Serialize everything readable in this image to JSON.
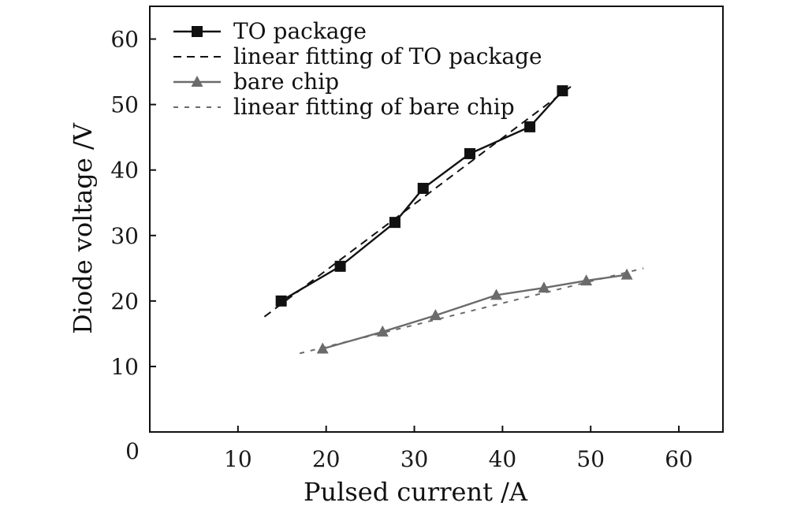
{
  "chart_data": {
    "type": "line",
    "title": "",
    "xlabel": "Pulsed current /A",
    "ylabel": "Diode voltage /V",
    "xlim": [
      0,
      65
    ],
    "ylim": [
      0,
      65
    ],
    "x_ticks": [
      10,
      20,
      30,
      40,
      50,
      60
    ],
    "y_ticks": [
      10,
      20,
      30,
      40,
      50,
      60
    ],
    "origin_label": "0",
    "legend_position": "top-left",
    "grid": false,
    "colors": {
      "to_package": "#111111",
      "bare_chip": "#6b6b6b"
    },
    "series": [
      {
        "name": "TO package",
        "style": "solid",
        "marker": "square",
        "color": "#111111",
        "x": [
          14.9,
          21.6,
          27.8,
          31.0,
          36.3,
          43.1,
          46.8
        ],
        "y": [
          20.0,
          25.3,
          32.0,
          37.2,
          42.5,
          46.6,
          52.1
        ]
      },
      {
        "name": "linear fitting of TO package",
        "style": "dashed",
        "marker": "none",
        "color": "#111111",
        "x": [
          13.0,
          48.0
        ],
        "y": [
          17.6,
          53.0
        ]
      },
      {
        "name": "bare chip",
        "style": "solid",
        "marker": "triangle",
        "color": "#6b6b6b",
        "x": [
          19.6,
          26.4,
          32.4,
          39.3,
          44.7,
          49.5,
          54.1
        ],
        "y": [
          12.7,
          15.3,
          17.8,
          20.9,
          22.0,
          23.1,
          24.0
        ]
      },
      {
        "name": "linear fitting of bare chip",
        "style": "dotted",
        "marker": "none",
        "color": "#6b6b6b",
        "x": [
          17.0,
          56.0
        ],
        "y": [
          12.0,
          25.0
        ]
      }
    ]
  }
}
